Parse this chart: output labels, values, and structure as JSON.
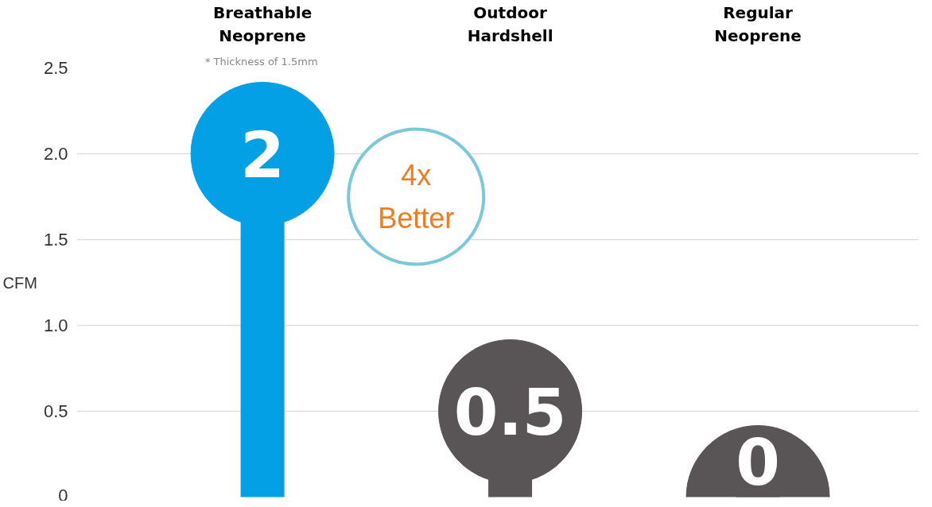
{
  "chart_data": {
    "type": "lollipop",
    "categories": [
      "Breathable\nNeoprene",
      "Outdoor\nHardshell",
      "Regular\nNeoprene"
    ],
    "values": [
      2,
      0.5,
      0
    ],
    "colors": [
      "#03a0e6",
      "#595556",
      "#595556"
    ],
    "ylabel": "CFM",
    "ylim": [
      0,
      2.5
    ],
    "yticks": [
      0,
      {
        "value": 0.5,
        "label": "0.5"
      },
      {
        "value": 1,
        "label": "1.0"
      },
      {
        "value": 1.5,
        "label": "1.5"
      },
      {
        "value": 2,
        "label": "2.0"
      },
      {
        "value": 2.5,
        "label": "2.5"
      }
    ],
    "grid": "y",
    "data_labels": true,
    "annotations": [
      "* Thickness of 1.5mm",
      "4x\nBetter"
    ]
  }
}
